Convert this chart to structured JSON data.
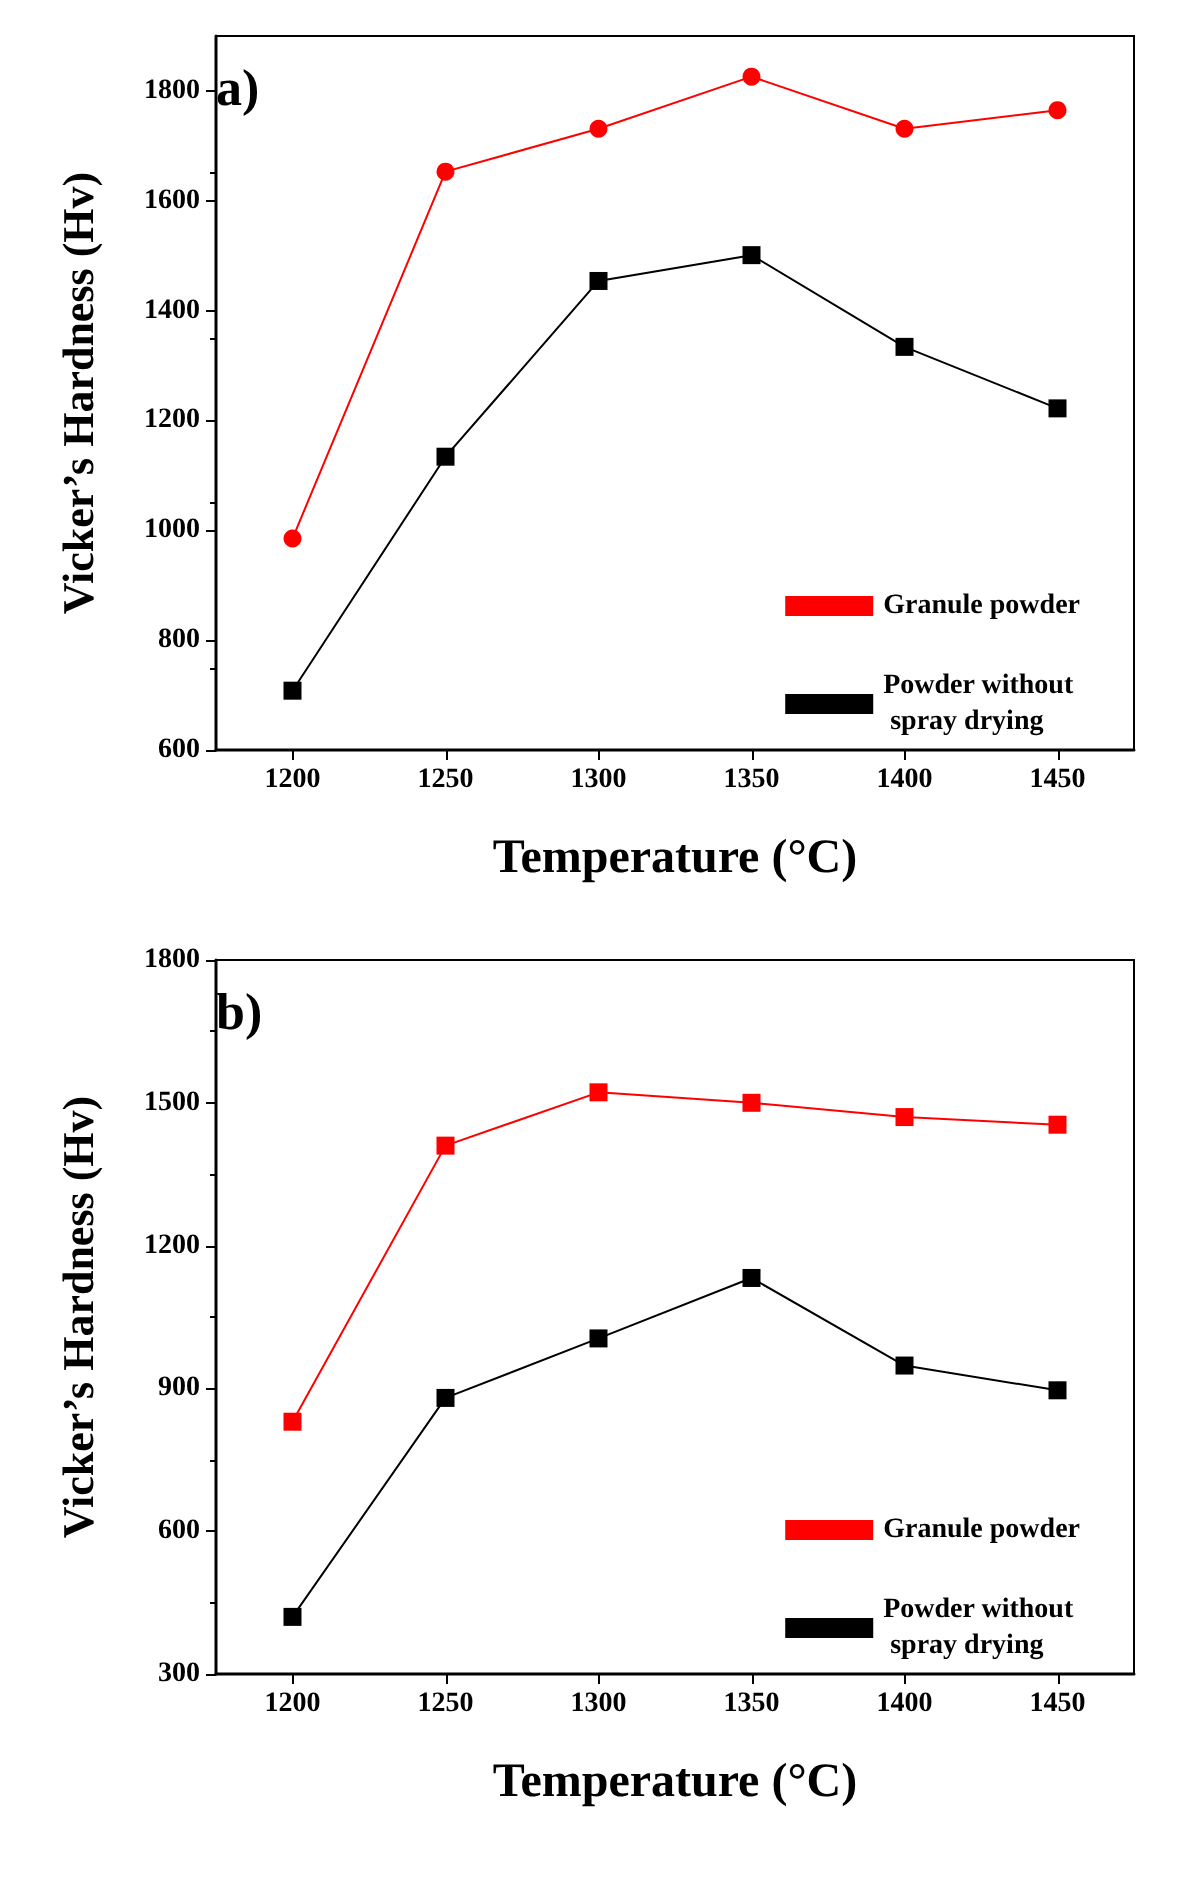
{
  "chart_data": [
    {
      "type": "line",
      "title": "a)",
      "xlabel": "Temperature (°C)",
      "ylabel": "Vicker’s Hardness (Hv)",
      "x": [
        1200,
        1250,
        1300,
        1350,
        1400,
        1450
      ],
      "xlim": [
        1175,
        1475
      ],
      "xticks": [
        1200,
        1250,
        1300,
        1350,
        1400,
        1450
      ],
      "ylim": [
        600,
        1900
      ],
      "yticks": [
        600,
        800,
        1000,
        1200,
        1400,
        1600,
        1800
      ],
      "grid": false,
      "legend": "bottom right",
      "series": [
        {
          "name": "Granule powder",
          "color": "#ff0000",
          "marker": "circle",
          "values": [
            985,
            1653,
            1731,
            1826,
            1731,
            1765
          ]
        },
        {
          "name": "Powder without\n spray drying",
          "color": "#000000",
          "marker": "square",
          "values": [
            708,
            1134,
            1454,
            1501,
            1334,
            1222
          ]
        }
      ]
    },
    {
      "type": "line",
      "title": "b)",
      "xlabel": "Temperature (°C)",
      "ylabel": "Vicker’s Hardness (Hv)",
      "x": [
        1200,
        1250,
        1300,
        1350,
        1400,
        1450
      ],
      "xlim": [
        1175,
        1475
      ],
      "xticks": [
        1200,
        1250,
        1300,
        1350,
        1400,
        1450
      ],
      "ylim": [
        300,
        1800
      ],
      "yticks": [
        300,
        600,
        900,
        1200,
        1500,
        1800
      ],
      "grid": false,
      "legend": "bottom right",
      "series": [
        {
          "name": "Granule powder",
          "color": "#ff0000",
          "marker": "square",
          "values": [
            830,
            1410,
            1522,
            1500,
            1470,
            1454
          ]
        },
        {
          "name": "Powder without\n spray drying",
          "color": "#000000",
          "marker": "square",
          "values": [
            420,
            880,
            1005,
            1132,
            948,
            896
          ]
        }
      ]
    }
  ]
}
